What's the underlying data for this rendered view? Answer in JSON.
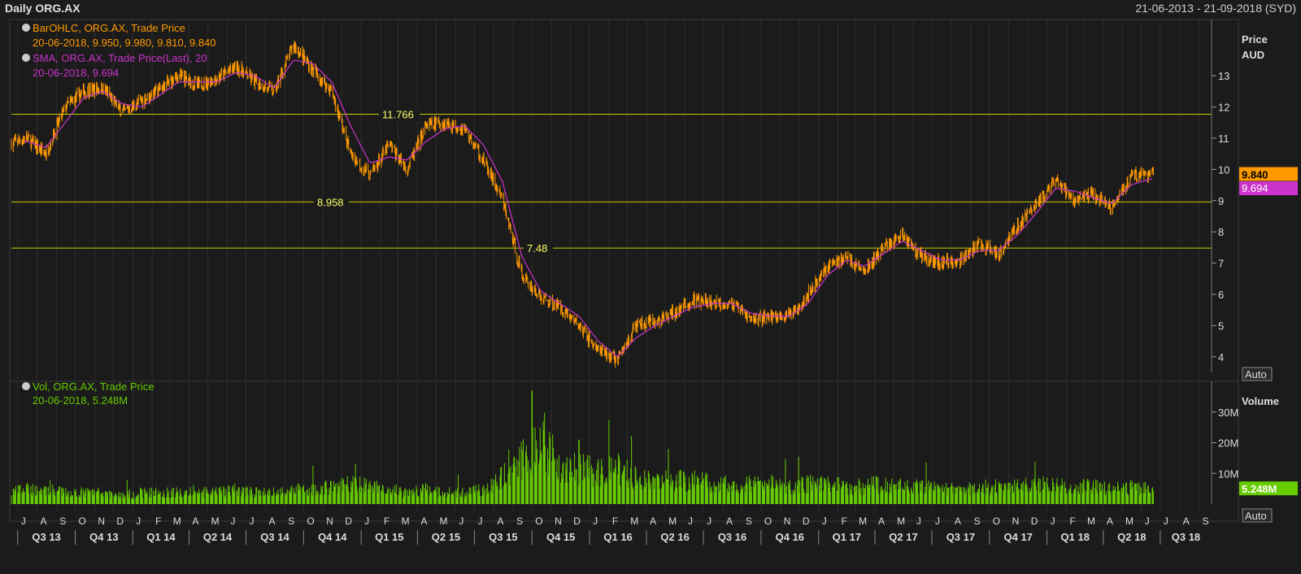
{
  "header": {
    "title": "Daily ORG.AX",
    "date_range": "21-06-2013 - 21-09-2018 (SYD)"
  },
  "legend": {
    "ohlc_label": "BarOHLC, ORG.AX, Trade Price",
    "ohlc_value": "20-06-2018, 9.950, 9.980, 9.810, 9.840",
    "sma_label": "SMA, ORG.AX, Trade Price(Last),  20",
    "sma_value": "20-06-2018, 9.694",
    "vol_label": "Vol, ORG.AX, Trade Price",
    "vol_value": "20-06-2018, 5.248M"
  },
  "axis": {
    "price_title": "Price",
    "price_unit": "AUD",
    "volume_title": "Volume",
    "auto_label": "Auto",
    "last_price_tag": "9.840",
    "sma_tag": "9.694",
    "volume_tag": "5.248M"
  },
  "colors": {
    "background": "#1b1b1b",
    "price": "#ff9900",
    "sma": "#cc33cc",
    "volume": "#66cc00",
    "level": "#cccc00",
    "grid": "#2e2e2e",
    "axis_text": "#dddddd"
  },
  "chart_data": [
    {
      "type": "line",
      "title": "Daily ORG.AX",
      "ylabel": "Price AUD",
      "ylim": [
        3.5,
        14.8
      ],
      "yticks": [
        4,
        5,
        6,
        7,
        8,
        9,
        10,
        11,
        12,
        13
      ],
      "x_months": [
        "J",
        "A",
        "S",
        "O",
        "N",
        "D",
        "J",
        "F",
        "M",
        "A",
        "M",
        "J",
        "J",
        "A",
        "S",
        "O",
        "N",
        "D",
        "J",
        "F",
        "M",
        "A",
        "M",
        "J",
        "J",
        "A",
        "S",
        "O",
        "N",
        "D",
        "J",
        "F",
        "M",
        "A",
        "M",
        "J",
        "J",
        "A",
        "S",
        "O",
        "N",
        "D",
        "J",
        "F",
        "M",
        "A",
        "M",
        "J",
        "J",
        "A",
        "S",
        "O",
        "N",
        "D",
        "J",
        "F",
        "M",
        "A",
        "M",
        "J",
        "J",
        "A",
        "S"
      ],
      "x_quarters": [
        "Q3 13",
        "Q4 13",
        "Q1 14",
        "Q2 14",
        "Q3 14",
        "Q4 14",
        "Q1 15",
        "Q2 15",
        "Q3 15",
        "Q4 15",
        "Q1 16",
        "Q2 16",
        "Q3 16",
        "Q4 16",
        "Q1 17",
        "Q2 17",
        "Q3 17",
        "Q4 17",
        "Q1 18",
        "Q2 18",
        "Q3 18"
      ],
      "series": [
        {
          "name": "BarOHLC, ORG.AX, Trade Price",
          "x": [
            "2013-06",
            "2013-07",
            "2013-08",
            "2013-09",
            "2013-10",
            "2013-11",
            "2013-12",
            "2014-01",
            "2014-02",
            "2014-03",
            "2014-04",
            "2014-05",
            "2014-06",
            "2014-07",
            "2014-08",
            "2014-09",
            "2014-10",
            "2014-11",
            "2014-12",
            "2015-01",
            "2015-02",
            "2015-03",
            "2015-04",
            "2015-05",
            "2015-06",
            "2015-07",
            "2015-08",
            "2015-09",
            "2015-10",
            "2015-11",
            "2015-12",
            "2016-01",
            "2016-02",
            "2016-03",
            "2016-04",
            "2016-05",
            "2016-06",
            "2016-07",
            "2016-08",
            "2016-09",
            "2016-10",
            "2016-11",
            "2016-12",
            "2017-01",
            "2017-02",
            "2017-03",
            "2017-04",
            "2017-05",
            "2017-06",
            "2017-07",
            "2017-08",
            "2017-09",
            "2017-10",
            "2017-11",
            "2017-12",
            "2018-01",
            "2018-02",
            "2018-03",
            "2018-04",
            "2018-05",
            "2018-06"
          ],
          "y": [
            10.8,
            11.0,
            10.5,
            12.0,
            12.5,
            12.6,
            11.8,
            12.2,
            12.6,
            13.0,
            12.7,
            12.9,
            13.3,
            12.8,
            12.5,
            14.0,
            13.2,
            12.5,
            10.5,
            9.8,
            10.8,
            10.0,
            11.4,
            11.5,
            11.3,
            10.3,
            9.0,
            6.6,
            5.9,
            5.6,
            5.0,
            4.2,
            3.9,
            5.0,
            5.1,
            5.4,
            5.8,
            5.7,
            5.7,
            5.2,
            5.3,
            5.3,
            6.0,
            6.9,
            7.2,
            6.7,
            7.5,
            7.9,
            7.2,
            7.0,
            7.1,
            7.6,
            7.3,
            8.2,
            8.9,
            9.6,
            9.0,
            9.2,
            8.8,
            9.8,
            9.84
          ]
        },
        {
          "name": "SMA, ORG.AX, Trade Price(Last),  20",
          "x": [
            "2013-06",
            "2013-07",
            "2013-08",
            "2013-09",
            "2013-10",
            "2013-11",
            "2013-12",
            "2014-01",
            "2014-02",
            "2014-03",
            "2014-04",
            "2014-05",
            "2014-06",
            "2014-07",
            "2014-08",
            "2014-09",
            "2014-10",
            "2014-11",
            "2014-12",
            "2015-01",
            "2015-02",
            "2015-03",
            "2015-04",
            "2015-05",
            "2015-06",
            "2015-07",
            "2015-08",
            "2015-09",
            "2015-10",
            "2015-11",
            "2015-12",
            "2016-01",
            "2016-02",
            "2016-03",
            "2016-04",
            "2016-05",
            "2016-06",
            "2016-07",
            "2016-08",
            "2016-09",
            "2016-10",
            "2016-11",
            "2016-12",
            "2017-01",
            "2017-02",
            "2017-03",
            "2017-04",
            "2017-05",
            "2017-06",
            "2017-07",
            "2017-08",
            "2017-09",
            "2017-10",
            "2017-11",
            "2017-12",
            "2018-01",
            "2018-02",
            "2018-03",
            "2018-04",
            "2018-05",
            "2018-06"
          ],
          "y": [
            10.8,
            10.9,
            10.7,
            11.5,
            12.3,
            12.5,
            12.1,
            12.0,
            12.4,
            12.8,
            12.8,
            12.8,
            13.1,
            13.0,
            12.6,
            13.5,
            13.4,
            12.8,
            11.4,
            10.2,
            10.4,
            10.3,
            10.9,
            11.3,
            11.4,
            10.8,
            9.6,
            7.2,
            6.1,
            5.7,
            5.3,
            4.5,
            4.0,
            4.6,
            5.0,
            5.3,
            5.6,
            5.7,
            5.7,
            5.4,
            5.3,
            5.3,
            5.7,
            6.6,
            7.1,
            6.9,
            7.3,
            7.7,
            7.4,
            7.1,
            7.1,
            7.4,
            7.4,
            7.9,
            8.6,
            9.4,
            9.3,
            9.1,
            8.9,
            9.5,
            9.694
          ]
        }
      ],
      "levels": [
        11.766,
        8.958,
        7.48
      ],
      "level_labels": [
        "11.766",
        "8.958",
        "7.48"
      ],
      "last_price": 9.84,
      "sma_last": 9.694
    },
    {
      "type": "bar",
      "ylabel": "Volume",
      "ylim": [
        0,
        40
      ],
      "yticks": [
        10,
        20,
        30
      ],
      "ytick_labels": [
        "10M",
        "20M",
        "30M"
      ],
      "series": [
        {
          "name": "Vol, ORG.AX, Trade Price",
          "x": [
            "2013-06",
            "2013-07",
            "2013-08",
            "2013-09",
            "2013-10",
            "2013-11",
            "2013-12",
            "2014-01",
            "2014-02",
            "2014-03",
            "2014-04",
            "2014-05",
            "2014-06",
            "2014-07",
            "2014-08",
            "2014-09",
            "2014-10",
            "2014-11",
            "2014-12",
            "2015-01",
            "2015-02",
            "2015-03",
            "2015-04",
            "2015-05",
            "2015-06",
            "2015-07",
            "2015-08",
            "2015-09",
            "2015-10",
            "2015-11",
            "2015-12",
            "2016-01",
            "2016-02",
            "2016-03",
            "2016-04",
            "2016-05",
            "2016-06",
            "2016-07",
            "2016-08",
            "2016-09",
            "2016-10",
            "2016-11",
            "2016-12",
            "2017-01",
            "2017-02",
            "2017-03",
            "2017-04",
            "2017-05",
            "2017-06",
            "2017-07",
            "2017-08",
            "2017-09",
            "2017-10",
            "2017-11",
            "2017-12",
            "2018-01",
            "2018-02",
            "2018-03",
            "2018-04",
            "2018-05",
            "2018-06"
          ],
          "values": [
            4,
            5,
            5,
            4,
            4,
            4,
            3,
            4,
            4,
            4,
            4,
            4,
            5,
            4,
            4,
            5,
            5,
            6,
            7,
            6,
            5,
            4,
            5,
            4,
            4,
            5,
            9,
            15,
            22,
            14,
            12,
            11,
            12,
            9,
            8,
            8,
            8,
            7,
            7,
            7,
            7,
            6,
            7,
            7,
            6,
            6,
            7,
            6,
            6,
            5,
            5,
            6,
            6,
            6,
            7,
            7,
            6,
            6,
            5,
            6,
            5.248
          ]
        }
      ],
      "peaks": [
        {
          "x": "2015-10-01",
          "y": 37
        },
        {
          "x": "2015-10-20",
          "y": 24
        },
        {
          "x": "2015-12-15",
          "y": 21
        }
      ],
      "last_volume": 5.248
    }
  ]
}
